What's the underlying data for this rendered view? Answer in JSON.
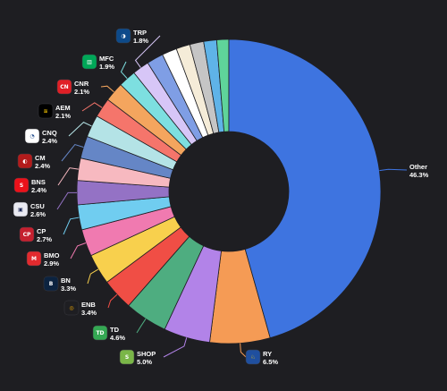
{
  "chart_data": {
    "type": "pie",
    "title": "",
    "slices": [
      {
        "label": "RY",
        "value": 6.5,
        "color": "#f59b55",
        "logo": {
          "name": "ry-logo-icon",
          "bg": "#1f4f9f",
          "glyph": "♘",
          "fg": "#ffd200"
        }
      },
      {
        "label": "SHOP",
        "value": 5.0,
        "color": "#b283e8",
        "logo": {
          "name": "shop-logo-icon",
          "bg": "#7ab648",
          "glyph": "S",
          "fg": "#ffffff"
        }
      },
      {
        "label": "TD",
        "value": 4.6,
        "color": "#4ead80",
        "logo": {
          "name": "td-logo-icon",
          "bg": "#34a853",
          "glyph": "TD",
          "fg": "#ffffff"
        }
      },
      {
        "label": "ENB",
        "value": 3.4,
        "color": "#f04e45",
        "logo": {
          "name": "enb-logo-icon",
          "bg": "#1e1e22",
          "glyph": "◎",
          "fg": "#f2a900"
        }
      },
      {
        "label": "BN",
        "value": 3.3,
        "color": "#f8d04d",
        "logo": {
          "name": "bn-logo-icon",
          "bg": "#0c2340",
          "glyph": "B",
          "fg": "#ffffff"
        }
      },
      {
        "label": "BMO",
        "value": 2.9,
        "color": "#f07ab0",
        "logo": {
          "name": "bmo-logo-icon",
          "bg": "#e22a2e",
          "glyph": "M",
          "fg": "#ffffff"
        }
      },
      {
        "label": "CP",
        "value": 2.7,
        "color": "#70cdf0",
        "logo": {
          "name": "cp-logo-icon",
          "bg": "#c5202f",
          "glyph": "CP",
          "fg": "#ffffff"
        }
      },
      {
        "label": "CSU",
        "value": 2.6,
        "color": "#9472c5",
        "logo": {
          "name": "csu-logo-icon",
          "bg": "#eaeaf2",
          "glyph": "▣",
          "fg": "#1e2a5a"
        }
      },
      {
        "label": "BNS",
        "value": 2.4,
        "color": "#f7b9c0",
        "logo": {
          "name": "bns-logo-icon",
          "bg": "#ec111a",
          "glyph": "S",
          "fg": "#ffffff"
        }
      },
      {
        "label": "CM",
        "value": 2.4,
        "color": "#6586c6",
        "logo": {
          "name": "cm-logo-icon",
          "bg": "#b31b1b",
          "glyph": "◐",
          "fg": "#ffffff"
        }
      },
      {
        "label": "CNQ",
        "value": 2.4,
        "color": "#b4e3e6",
        "logo": {
          "name": "cnq-logo-icon",
          "bg": "#ffffff",
          "glyph": "◔",
          "fg": "#1f4a8c"
        }
      },
      {
        "label": "AEM",
        "value": 2.1,
        "color": "#f5756b",
        "logo": {
          "name": "aem-logo-icon",
          "bg": "#000000",
          "glyph": "≋",
          "fg": "#f2c200"
        }
      },
      {
        "label": "CNR",
        "value": 2.1,
        "color": "#f4a55e",
        "logo": {
          "name": "cnr-logo-icon",
          "bg": "#e01f26",
          "glyph": "CN",
          "fg": "#ffffff"
        }
      },
      {
        "label": "MFC",
        "value": 1.9,
        "color": "#7ddfe0",
        "logo": {
          "name": "mfc-logo-icon",
          "bg": "#00a758",
          "glyph": "▥",
          "fg": "#ffffff"
        }
      },
      {
        "label": "TRP",
        "value": 1.8,
        "color": "#d7c6f7",
        "logo": {
          "name": "trp-logo-icon",
          "bg": "#0d4a8a",
          "glyph": "◑",
          "fg": "#ffffff"
        }
      },
      {
        "label": "",
        "value": 1.8,
        "color": "#7f9ee5"
      },
      {
        "label": "",
        "value": 1.6,
        "color": "#ffffff"
      },
      {
        "label": "",
        "value": 1.5,
        "color": "#f5ecd8"
      },
      {
        "label": "",
        "value": 1.5,
        "color": "#c5c5c5"
      },
      {
        "label": "",
        "value": 1.4,
        "color": "#5fb3e8"
      },
      {
        "label": "",
        "value": 1.3,
        "color": "#5fd49a"
      },
      {
        "label": "Other",
        "value": 46.3,
        "color": "#3e74e0"
      }
    ]
  }
}
